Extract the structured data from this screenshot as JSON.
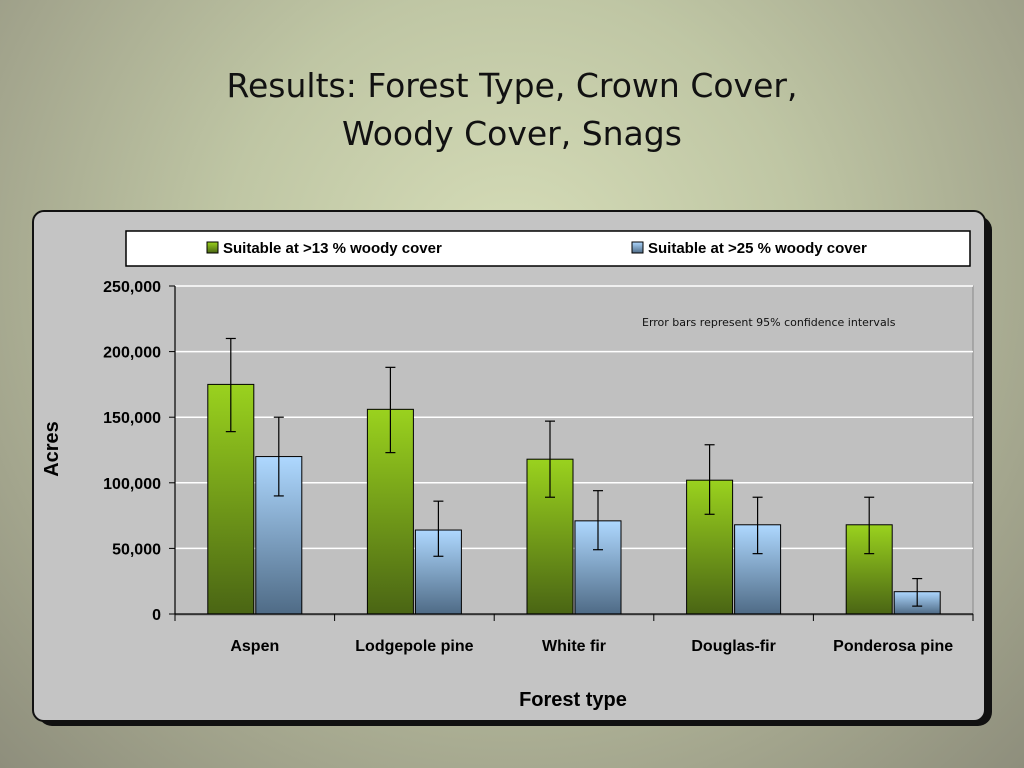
{
  "slide": {
    "title_line1": "Results:  Forest Type, Crown Cover,",
    "title_line2": "Woody Cover, Snags"
  },
  "colors": {
    "series1_top": "#9ad21e",
    "series1_bottom": "#4a6514",
    "series2_top": "#aed8ff",
    "series2_bottom": "#4f6b86",
    "plot_background": "#c0c0c0",
    "gridline": "#ffffff"
  },
  "chart_data": {
    "type": "bar",
    "title": "",
    "xlabel": "Forest type",
    "ylabel": "Acres",
    "ylim": [
      0,
      250000
    ],
    "yticks": [
      0,
      50000,
      100000,
      150000,
      200000,
      250000
    ],
    "ytick_labels": [
      "0",
      "50,000",
      "100,000",
      "150,000",
      "200,000",
      "250,000"
    ],
    "grid": true,
    "legend_position": "top",
    "annotation": "Error bars represent 95% confidence intervals",
    "categories": [
      "Aspen",
      "Lodgepole pine",
      "White fir",
      "Douglas-fir",
      "Ponderosa pine"
    ],
    "series": [
      {
        "name": "Suitable at >13 % woody cover",
        "values": [
          175000,
          156000,
          118000,
          102000,
          68000
        ],
        "error_low": [
          139000,
          123000,
          89000,
          76000,
          46000
        ],
        "error_high": [
          210000,
          188000,
          147000,
          129000,
          89000
        ]
      },
      {
        "name": "Suitable at >25 % woody cover",
        "values": [
          120000,
          64000,
          71000,
          68000,
          17000
        ],
        "error_low": [
          90000,
          44000,
          49000,
          46000,
          6000
        ],
        "error_high": [
          150000,
          86000,
          94000,
          89000,
          27000
        ]
      }
    ]
  }
}
